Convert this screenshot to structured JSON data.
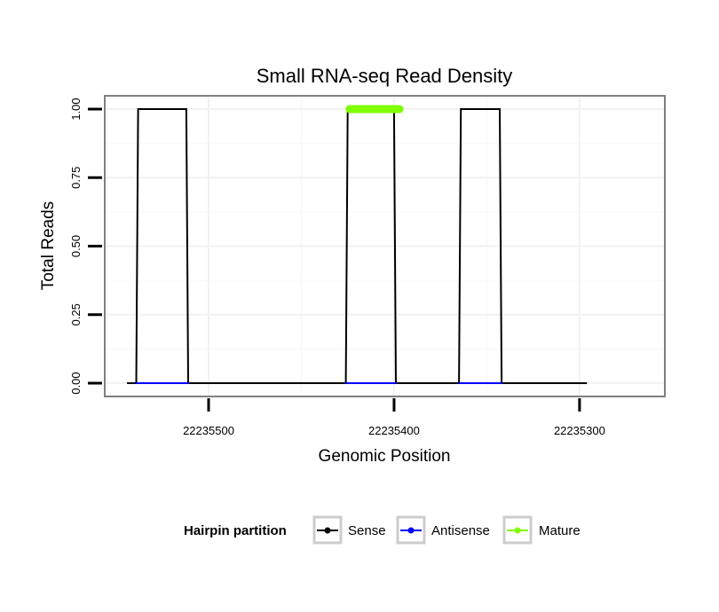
{
  "chart_data": {
    "type": "line",
    "title": "Small RNA-seq Read Density",
    "xlabel": "Genomic Position",
    "ylabel": "Total Reads",
    "xlim": [
      22235556,
      22235254
    ],
    "x_reversed": true,
    "ylim": [
      0,
      1.0
    ],
    "xticks": [
      22235500,
      22235400,
      22235300
    ],
    "yticks": [
      0.0,
      0.25,
      0.5,
      0.75,
      1.0
    ],
    "ytick_labels": [
      "0.00",
      "0.25",
      "0.50",
      "0.75",
      "1.00"
    ],
    "grid": true,
    "series": [
      {
        "name": "Sense",
        "color": "#000000",
        "x": [
          22235544,
          22235539,
          22235538,
          22235512,
          22235511,
          22235426,
          22235425,
          22235400,
          22235399,
          22235365,
          22235364,
          22235343,
          22235342,
          22235296
        ],
        "y": [
          0,
          0,
          1,
          1,
          0,
          0,
          1,
          1,
          0,
          0,
          1,
          1,
          0,
          0
        ]
      },
      {
        "name": "Antisense",
        "color": "#0000ff",
        "segments": [
          [
            22235539,
            22235511
          ],
          [
            22235426,
            22235399
          ],
          [
            22235365,
            22235342
          ]
        ],
        "y": 0
      },
      {
        "name": "Mature",
        "color": "#7fff00",
        "segments": [
          [
            22235424,
            22235397
          ]
        ],
        "y": 1
      }
    ]
  },
  "legend": {
    "title": "Hairpin partition",
    "items": [
      {
        "label": "Sense",
        "color": "#000000"
      },
      {
        "label": "Antisense",
        "color": "#0000ff"
      },
      {
        "label": "Mature",
        "color": "#7fff00"
      }
    ]
  }
}
